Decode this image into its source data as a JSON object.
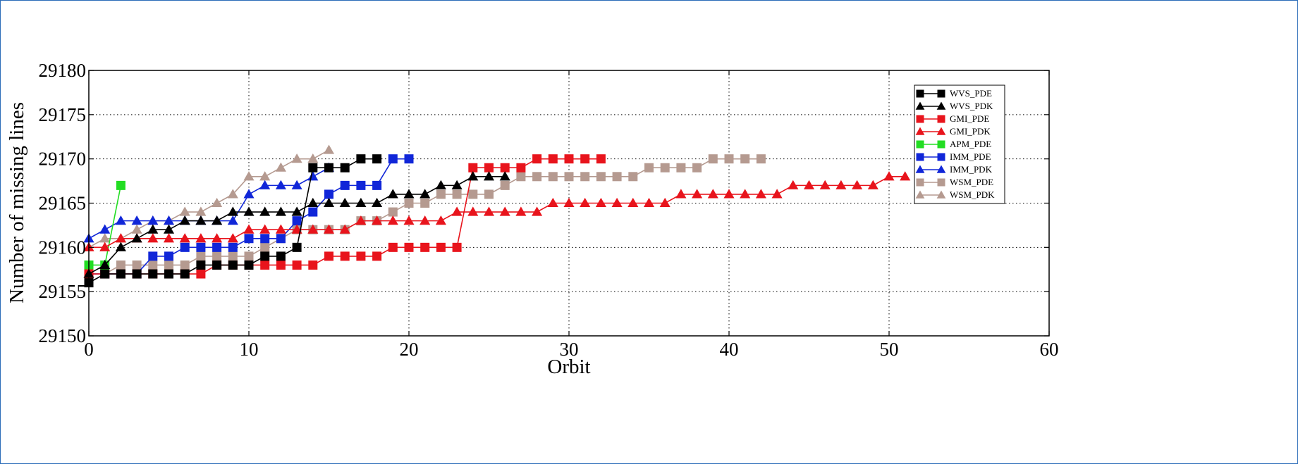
{
  "chart_data": {
    "type": "line",
    "title": "",
    "xlabel": "Orbit",
    "ylabel": "Number of missing lines",
    "xlim": [
      0,
      60
    ],
    "ylim": [
      29150,
      29180
    ],
    "xticks": [
      "0",
      "10",
      "20",
      "30",
      "40",
      "50",
      "60"
    ],
    "yticks": [
      "29150",
      "29155",
      "29160",
      "29165",
      "29170",
      "29175",
      "29180"
    ],
    "grid": true,
    "legend_position": "top-right",
    "series": [
      {
        "name": "WVS_PDE",
        "color": "#000000",
        "marker": "square",
        "x": [
          0,
          1,
          2,
          3,
          4,
          5,
          6,
          7,
          8,
          9,
          10,
          11,
          12,
          13,
          14,
          15,
          16,
          17,
          18
        ],
        "y": [
          29156,
          29157,
          29157,
          29157,
          29157,
          29157,
          29157,
          29158,
          29158,
          29158,
          29158,
          29159,
          29159,
          29160,
          29169,
          29169,
          29169,
          29170,
          29170
        ]
      },
      {
        "name": "WVS_PDK",
        "color": "#000000",
        "marker": "triangle",
        "x": [
          0,
          1,
          2,
          3,
          4,
          5,
          6,
          7,
          8,
          9,
          10,
          11,
          12,
          13,
          14,
          15,
          16,
          17,
          18,
          19,
          20,
          21,
          22,
          23,
          24,
          25,
          26
        ],
        "y": [
          29157,
          29158,
          29160,
          29161,
          29162,
          29162,
          29163,
          29163,
          29163,
          29164,
          29164,
          29164,
          29164,
          29164,
          29165,
          29165,
          29165,
          29165,
          29165,
          29166,
          29166,
          29166,
          29167,
          29167,
          29168,
          29168,
          29168
        ]
      },
      {
        "name": "GMI_PDE",
        "color": "#e8141c",
        "marker": "square",
        "x": [
          0,
          1,
          2,
          3,
          4,
          5,
          6,
          7,
          8,
          9,
          10,
          11,
          12,
          13,
          14,
          15,
          16,
          17,
          18,
          19,
          20,
          21,
          22,
          23,
          24,
          25,
          26,
          27,
          28,
          29,
          30,
          31,
          32
        ],
        "y": [
          29157,
          29157,
          29157,
          29157,
          29157,
          29157,
          29157,
          29157,
          29158,
          29158,
          29158,
          29158,
          29158,
          29158,
          29158,
          29159,
          29159,
          29159,
          29159,
          29160,
          29160,
          29160,
          29160,
          29160,
          29169,
          29169,
          29169,
          29169,
          29170,
          29170,
          29170,
          29170,
          29170
        ]
      },
      {
        "name": "GMI_PDK",
        "color": "#e8141c",
        "marker": "triangle",
        "x": [
          0,
          1,
          2,
          3,
          4,
          5,
          6,
          7,
          8,
          9,
          10,
          11,
          12,
          13,
          14,
          15,
          16,
          17,
          18,
          19,
          20,
          21,
          22,
          23,
          24,
          25,
          26,
          27,
          28,
          29,
          30,
          31,
          32,
          33,
          34,
          35,
          36,
          37,
          38,
          39,
          40,
          41,
          42,
          43,
          44,
          45,
          46,
          47,
          48,
          49,
          50,
          51
        ],
        "y": [
          29160,
          29160,
          29161,
          29161,
          29161,
          29161,
          29161,
          29161,
          29161,
          29161,
          29162,
          29162,
          29162,
          29162,
          29162,
          29162,
          29162,
          29163,
          29163,
          29163,
          29163,
          29163,
          29163,
          29164,
          29164,
          29164,
          29164,
          29164,
          29164,
          29165,
          29165,
          29165,
          29165,
          29165,
          29165,
          29165,
          29165,
          29166,
          29166,
          29166,
          29166,
          29166,
          29166,
          29166,
          29167,
          29167,
          29167,
          29167,
          29167,
          29167,
          29168,
          29168
        ]
      },
      {
        "name": "APM_PDE",
        "color": "#22dd22",
        "marker": "square",
        "x": [
          0,
          1,
          2
        ],
        "y": [
          29158,
          29158,
          29167
        ]
      },
      {
        "name": "IMM_PDE",
        "color": "#1026d8",
        "marker": "square",
        "x": [
          0,
          1,
          2,
          3,
          4,
          5,
          6,
          7,
          8,
          9,
          10,
          11,
          12,
          13,
          14,
          15,
          16,
          17,
          18,
          19,
          20
        ],
        "y": [
          29157,
          29157,
          29157,
          29157,
          29159,
          29159,
          29160,
          29160,
          29160,
          29160,
          29161,
          29161,
          29161,
          29163,
          29164,
          29166,
          29167,
          29167,
          29167,
          29170,
          29170
        ]
      },
      {
        "name": "IMM_PDK",
        "color": "#1026d8",
        "marker": "triangle",
        "x": [
          0,
          1,
          2,
          3,
          4,
          5,
          6,
          7,
          8,
          9,
          10,
          11,
          12,
          13,
          14,
          15
        ],
        "y": [
          29161,
          29162,
          29163,
          29163,
          29163,
          29163,
          29163,
          29163,
          29163,
          29163,
          29166,
          29167,
          29167,
          29167,
          29168,
          29169
        ]
      },
      {
        "name": "WSM_PDE",
        "color": "#b59a90",
        "marker": "square",
        "x": [
          0,
          1,
          2,
          3,
          4,
          5,
          6,
          7,
          8,
          9,
          10,
          11,
          12,
          13,
          14,
          15,
          16,
          17,
          18,
          19,
          20,
          21,
          22,
          23,
          24,
          25,
          26,
          27,
          28,
          29,
          30,
          31,
          32,
          33,
          34,
          35,
          36,
          37,
          38,
          39,
          40,
          41,
          42
        ],
        "y": [
          29157,
          29157,
          29158,
          29158,
          29158,
          29158,
          29158,
          29159,
          29159,
          29159,
          29159,
          29160,
          29161,
          29162,
          29162,
          29162,
          29162,
          29163,
          29163,
          29164,
          29165,
          29165,
          29166,
          29166,
          29166,
          29166,
          29167,
          29168,
          29168,
          29168,
          29168,
          29168,
          29168,
          29168,
          29168,
          29169,
          29169,
          29169,
          29169,
          29170,
          29170,
          29170,
          29170
        ]
      },
      {
        "name": "WSM_PDK",
        "color": "#b59a90",
        "marker": "triangle",
        "x": [
          0,
          1,
          2,
          3,
          4,
          5,
          6,
          7,
          8,
          9,
          10,
          11,
          12,
          13,
          14,
          15
        ],
        "y": [
          29160,
          29161,
          29161,
          29162,
          29163,
          29163,
          29164,
          29164,
          29165,
          29166,
          29168,
          29168,
          29169,
          29170,
          29170,
          29171
        ]
      }
    ]
  }
}
